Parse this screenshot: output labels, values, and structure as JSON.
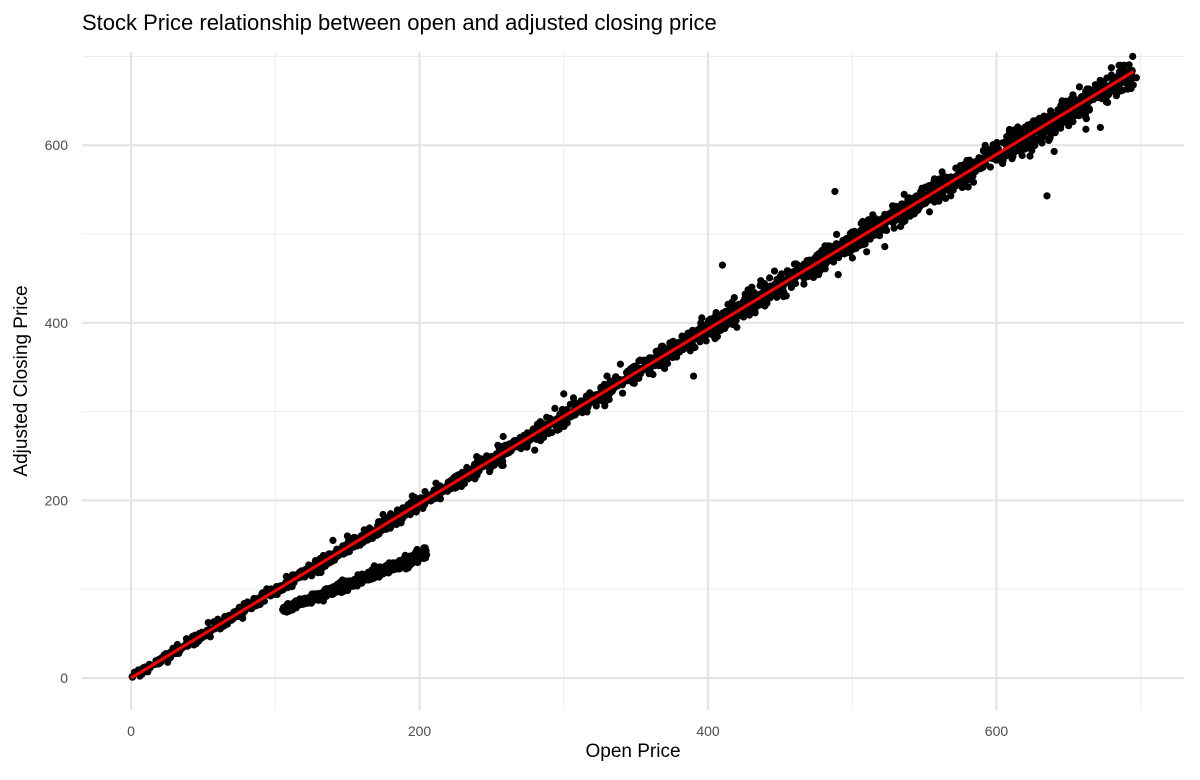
{
  "chart_data": {
    "type": "scatter",
    "title": "Stock Price relationship between open and adjusted closing price",
    "xlabel": "Open Price",
    "ylabel": "Adjusted Closing Price",
    "xlim": [
      -34,
      730
    ],
    "ylim": [
      -36,
      705
    ],
    "x_ticks": [
      0,
      200,
      400,
      600
    ],
    "y_ticks": [
      0,
      200,
      400,
      600
    ],
    "x_minor": [
      100,
      300,
      500,
      700
    ],
    "y_minor": [
      100,
      300,
      500,
      700
    ],
    "grid": true,
    "point_color": "#000000",
    "fit_line": {
      "color": "#ff0000",
      "x": [
        0,
        695
      ],
      "y": [
        0,
        683
      ]
    },
    "clusters": [
      {
        "x_range": [
          0,
          695
        ],
        "slope": 0.983,
        "intercept": 0,
        "spread": 6,
        "count": 2600
      },
      {
        "x_range": [
          105,
          205
        ],
        "slope": 0.64,
        "intercept": 9,
        "spread": 4,
        "count": 700
      }
    ],
    "outliers": [
      [
        390,
        340
      ],
      [
        382,
        385
      ],
      [
        410,
        465
      ],
      [
        420,
        395
      ],
      [
        488,
        548
      ],
      [
        635,
        543
      ],
      [
        600,
        600
      ],
      [
        640,
        593
      ],
      [
        650,
        622
      ],
      [
        672,
        620
      ],
      [
        662,
        618
      ],
      [
        685,
        690
      ],
      [
        688,
        672
      ],
      [
        692,
        683
      ],
      [
        697,
        676
      ],
      [
        580,
        562
      ],
      [
        560,
        550
      ],
      [
        540,
        520
      ],
      [
        510,
        480
      ],
      [
        450,
        452
      ],
      [
        300,
        320
      ],
      [
        330,
        340
      ],
      [
        360,
        360
      ],
      [
        258,
        272
      ],
      [
        240,
        240
      ],
      [
        226,
        228
      ],
      [
        195,
        205
      ],
      [
        180,
        185
      ],
      [
        150,
        160
      ],
      [
        140,
        155
      ]
    ]
  }
}
